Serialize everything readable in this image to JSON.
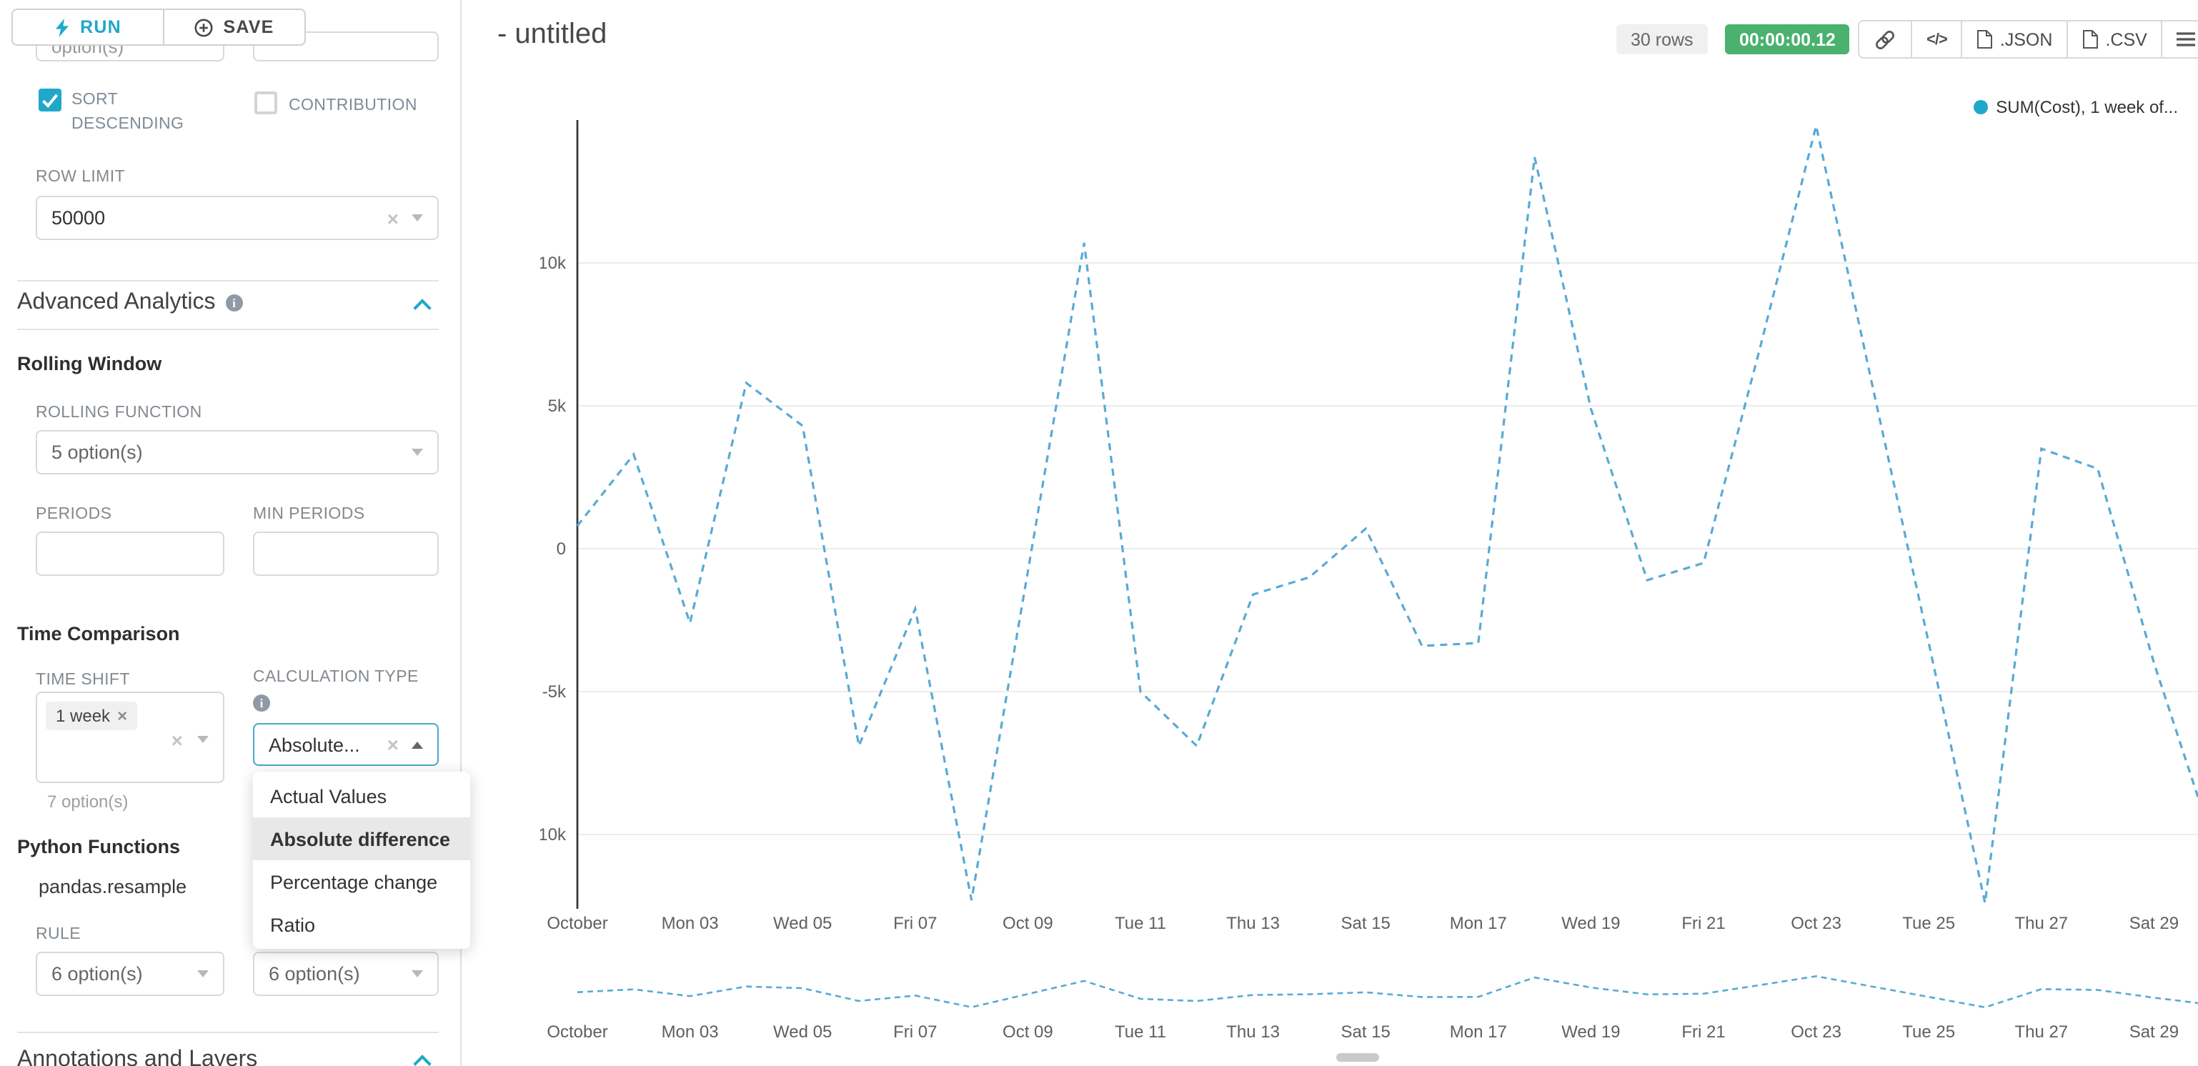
{
  "colors": {
    "accent": "#1FA8C9",
    "focus": "#45A9C9",
    "badge_green": "#4AB16E",
    "grid": "#ECECEC",
    "line": "#59A9D6"
  },
  "toolbar": {
    "run": "RUN",
    "save": "SAVE"
  },
  "sidebar": {
    "top_left_fragment": "option(s)",
    "sort_descending": {
      "label": "SORT DESCENDING",
      "checked": true
    },
    "contribution": {
      "label": "CONTRIBUTION",
      "checked": false
    },
    "row_limit": {
      "label": "ROW LIMIT",
      "value": "50000"
    },
    "advanced_analytics_title": "Advanced Analytics",
    "rolling_window": {
      "title": "Rolling Window",
      "function_label": "ROLLING FUNCTION",
      "function_value": "5 option(s)",
      "periods_label": "PERIODS",
      "min_periods_label": "MIN PERIODS"
    },
    "time_comparison": {
      "title": "Time Comparison",
      "time_shift_label": "TIME SHIFT",
      "time_shift_tag": "1 week",
      "time_shift_helper": "7 option(s)",
      "calc_type_label": "CALCULATION TYPE",
      "calc_type_value": "Absolute...",
      "dropdown_options": [
        "Actual Values",
        "Absolute difference",
        "Percentage change",
        "Ratio"
      ],
      "selected_option": "Absolute difference"
    },
    "python_functions": {
      "title": "Python Functions",
      "function_name": "pandas.resample",
      "rule_label": "RULE",
      "rule_value_1": "6 option(s)",
      "rule_value_2": "6 option(s)"
    },
    "annotations_title": "Annotations and Layers"
  },
  "header": {
    "title": "- untitled",
    "rows_badge": "30 rows",
    "duration_badge": "00:00:00.12",
    "buttons": {
      "json": ".JSON",
      "csv": ".CSV"
    }
  },
  "legend": {
    "label": "SUM(Cost), 1 week of...",
    "dot_color": "#1FA8C9"
  },
  "chart_data": {
    "type": "line",
    "title": "- untitled",
    "x": [
      "Oct 01",
      "Oct 02",
      "Oct 03",
      "Oct 04",
      "Oct 05",
      "Oct 06",
      "Oct 07",
      "Oct 08",
      "Oct 09",
      "Oct 10",
      "Oct 11",
      "Oct 12",
      "Oct 13",
      "Oct 14",
      "Oct 15",
      "Oct 16",
      "Oct 17",
      "Oct 18",
      "Oct 19",
      "Oct 20",
      "Oct 21",
      "Oct 22",
      "Oct 23",
      "Oct 24",
      "Oct 25",
      "Oct 26",
      "Oct 27",
      "Oct 28",
      "Oct 29",
      "Oct 30"
    ],
    "series": [
      {
        "name": "SUM(Cost), 1 week of...",
        "color": "#59A9D6",
        "dashed": true,
        "values": [
          800,
          3300,
          -2600,
          5800,
          4300,
          -6900,
          -2100,
          -12300,
          -800,
          10700,
          -5000,
          -6900,
          -1600,
          -1000,
          700,
          -3400,
          -3300,
          13700,
          4900,
          -1100,
          -500,
          7000,
          14800,
          5700,
          -3300,
          -12400,
          3500,
          2800,
          -4000,
          -10000
        ]
      }
    ],
    "x_tick_labels": [
      "October",
      "Mon 03",
      "Wed 05",
      "Fri 07",
      "Oct 09",
      "Tue 11",
      "Thu 13",
      "Sat 15",
      "Mon 17",
      "Wed 19",
      "Fri 21",
      "Oct 23",
      "Tue 25",
      "Thu 27",
      "Sat 29"
    ],
    "x_tick_positions": [
      0,
      2,
      4,
      6,
      8,
      10,
      12,
      14,
      16,
      18,
      20,
      22,
      24,
      26,
      28
    ],
    "y_ticks": [
      {
        "label": "10k",
        "value": 10000
      },
      {
        "label": "5k",
        "value": 5000
      },
      {
        "label": "0",
        "value": 0
      },
      {
        "label": "-5k",
        "value": -5000
      },
      {
        "label": "-10k",
        "value": -10000
      }
    ],
    "ylim": [
      -13000,
      15300
    ],
    "grid": true,
    "line_style": "dashed",
    "legend_position": "top-right",
    "has_mini_context_chart": true
  }
}
